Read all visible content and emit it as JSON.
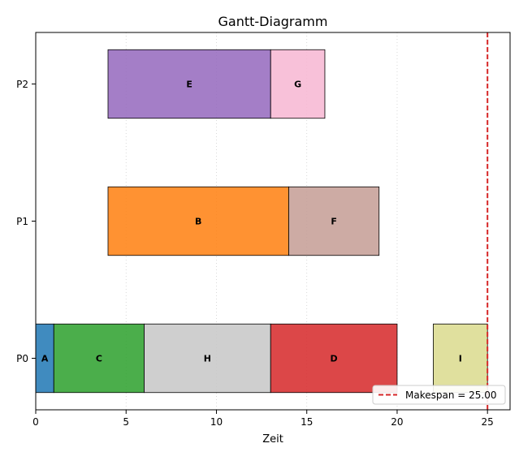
{
  "chart_data": {
    "type": "gantt",
    "title": "Gantt-Diagramm",
    "xlabel": "Zeit",
    "ylabel": "",
    "xlim": [
      0,
      26.25
    ],
    "x_ticks": [
      0,
      5,
      10,
      15,
      20,
      25
    ],
    "processors": [
      "P0",
      "P1",
      "P2"
    ],
    "grid": {
      "x": true,
      "y": false,
      "style": "dotted"
    },
    "tasks": [
      {
        "name": "A",
        "processor": "P0",
        "start": 0,
        "end": 1,
        "color": "#1f77b4"
      },
      {
        "name": "C",
        "processor": "P0",
        "start": 1,
        "end": 6,
        "color": "#2ca02c"
      },
      {
        "name": "H",
        "processor": "P0",
        "start": 6,
        "end": 13,
        "color": "#c7c7c7"
      },
      {
        "name": "D",
        "processor": "P0",
        "start": 13,
        "end": 20,
        "color": "#d62728"
      },
      {
        "name": "I",
        "processor": "P0",
        "start": 22,
        "end": 25,
        "color": "#dbdb8d"
      },
      {
        "name": "B",
        "processor": "P1",
        "start": 4,
        "end": 14,
        "color": "#ff7f0e"
      },
      {
        "name": "F",
        "processor": "P1",
        "start": 14,
        "end": 19,
        "color": "#c49c94"
      },
      {
        "name": "E",
        "processor": "P2",
        "start": 4,
        "end": 13,
        "color": "#9467bd"
      },
      {
        "name": "G",
        "processor": "P2",
        "start": 13,
        "end": 16,
        "color": "#f7b6d2"
      }
    ],
    "makespan": {
      "value": 25,
      "label": "Makespan = 25.00",
      "color": "#d62728",
      "style": "dashed"
    },
    "legend": {
      "position": "lower-right"
    }
  }
}
